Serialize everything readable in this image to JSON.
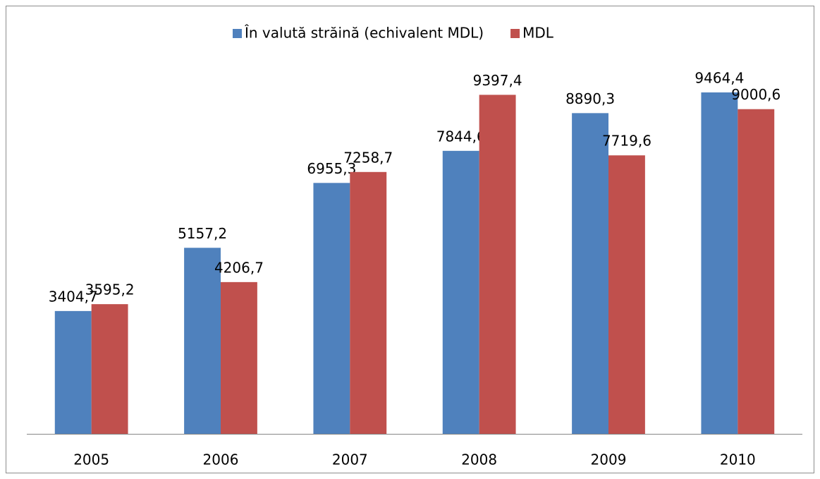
{
  "chart_data": {
    "type": "bar",
    "categories": [
      "2005",
      "2006",
      "2007",
      "2008",
      "2009",
      "2010"
    ],
    "series": [
      {
        "name": "În valută străină (echivalent MDL)",
        "color": "#4f81bd",
        "values": [
          3404.7,
          5157.2,
          6955.3,
          7844.6,
          8890.3,
          9464.4
        ],
        "value_labels": [
          "3404,7",
          "5157,2",
          "6955,3",
          "7844,6",
          "8890,3",
          "9464,4"
        ]
      },
      {
        "name": "MDL",
        "color": "#c0504d",
        "values": [
          3595.2,
          4206.7,
          7258.7,
          9397.4,
          7719.6,
          9000.6
        ],
        "value_labels": [
          "3595,2",
          "4206,7",
          "7258,7",
          "9397,4",
          "7719,6",
          "9000,6"
        ]
      }
    ],
    "legend": "top"
  }
}
